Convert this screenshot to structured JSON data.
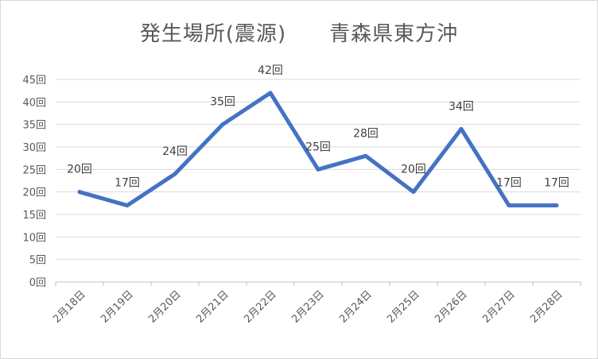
{
  "chart_data": {
    "type": "line",
    "title": "発生場所(震源)　　青森県東方沖",
    "categories": [
      "2月18日",
      "2月19日",
      "2月20日",
      "2月21日",
      "2月22日",
      "2月23日",
      "2月24日",
      "2月25日",
      "2月26日",
      "2月27日",
      "2月28日"
    ],
    "series": [
      {
        "values": [
          20,
          17,
          24,
          35,
          42,
          25,
          28,
          20,
          34,
          17,
          17
        ],
        "color": "#4472c4"
      }
    ],
    "data_labels": [
      "20回",
      "17回",
      "24回",
      "35回",
      "42回",
      "25回",
      "28回",
      "20回",
      "34回",
      "17回",
      "17回"
    ],
    "y_tick_labels": [
      "0回",
      "5回",
      "10回",
      "15回",
      "20回",
      "25回",
      "30回",
      "35回",
      "40回",
      "45回"
    ],
    "ylim": [
      0,
      45
    ],
    "grid": true,
    "legend": "none"
  }
}
